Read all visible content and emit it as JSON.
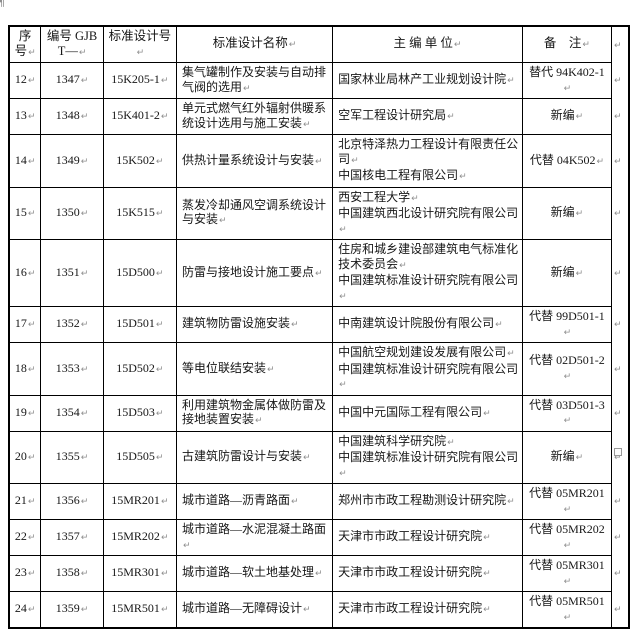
{
  "table": {
    "headers": {
      "index": "序号",
      "number": "编号 GJBT—",
      "design_no": "标准设计号",
      "design_name": "标准设计名称",
      "chief_editor": "主 编 单 位",
      "remark": "备　注"
    },
    "rows": [
      {
        "index": "12",
        "number": "1347",
        "design_no": "15K205-1",
        "design_name": "集气罐制作及安装与自动排气阀的选用",
        "chief_editor": [
          "国家林业局林产工业规划设计院"
        ],
        "remark": "替代 94K402-1"
      },
      {
        "index": "13",
        "number": "1348",
        "design_no": "15K401-2",
        "design_name": "单元式燃气红外辐射供暖系统设计选用与施工安装",
        "chief_editor": [
          "空军工程设计研究局"
        ],
        "remark": "新编"
      },
      {
        "index": "14",
        "number": "1349",
        "design_no": "15K502",
        "design_name": "供热计量系统设计与安装",
        "chief_editor": [
          "北京特泽热力工程设计有限责任公司",
          "中国核电工程有限公司"
        ],
        "remark": "代替 04K502"
      },
      {
        "index": "15",
        "number": "1350",
        "design_no": "15K515",
        "design_name": "蒸发冷却通风空调系统设计与安装",
        "chief_editor": [
          "西安工程大学",
          "中国建筑西北设计研究院有限公司"
        ],
        "remark": "新编"
      },
      {
        "index": "16",
        "number": "1351",
        "design_no": "15D500",
        "design_name": "防雷与接地设计施工要点",
        "chief_editor": [
          "住房和城乡建设部建筑电气标准化技术委员会",
          "中国建筑标准设计研究院有限公司"
        ],
        "remark": "新编"
      },
      {
        "index": "17",
        "number": "1352",
        "design_no": "15D501",
        "design_name": "建筑物防雷设施安装",
        "chief_editor": [
          "中南建筑设计院股份有限公司"
        ],
        "remark": "代替 99D501-1"
      },
      {
        "index": "18",
        "number": "1353",
        "design_no": "15D502",
        "design_name": "等电位联结安装",
        "chief_editor": [
          "中国航空规划建设发展有限公司",
          "中国建筑标准设计研究院有限公司"
        ],
        "remark": "代替 02D501-2"
      },
      {
        "index": "19",
        "number": "1354",
        "design_no": "15D503",
        "design_name": "利用建筑物金属体做防雷及接地装置安装",
        "chief_editor": [
          "中国中元国际工程有限公司"
        ],
        "remark": "代替 03D501-3"
      },
      {
        "index": "20",
        "number": "1355",
        "design_no": "15D505",
        "design_name": "古建筑防雷设计与安装",
        "chief_editor": [
          "中国建筑科学研究院",
          "中国建筑标准设计研究院有限公司"
        ],
        "remark": "新编"
      },
      {
        "index": "21",
        "number": "1356",
        "design_no": "15MR201",
        "design_name": "城市道路—沥青路面",
        "chief_editor": [
          "郑州市市政工程勘测设计研究院"
        ],
        "remark": "代替 05MR201"
      },
      {
        "index": "22",
        "number": "1357",
        "design_no": "15MR202",
        "design_name": "城市道路—水泥混凝土路面",
        "chief_editor": [
          "天津市市政工程设计研究院"
        ],
        "remark": "代替 05MR202"
      },
      {
        "index": "23",
        "number": "1358",
        "design_no": "15MR301",
        "design_name": "城市道路—软土地基处理",
        "chief_editor": [
          "天津市市政工程设计研究院"
        ],
        "remark": "代替 05MR301"
      },
      {
        "index": "24",
        "number": "1359",
        "design_no": "15MR501",
        "design_name": "城市道路—无障碍设计",
        "chief_editor": [
          "天津市市政工程设计研究院"
        ],
        "remark": "代替 05MR501"
      }
    ]
  },
  "marks": {
    "cell_end": "↵",
    "row_end": "↵",
    "page_anchor": "¶"
  },
  "colors": {
    "border": "#000000",
    "text": "#161616",
    "formatting_mark": "#8e8e8e"
  }
}
